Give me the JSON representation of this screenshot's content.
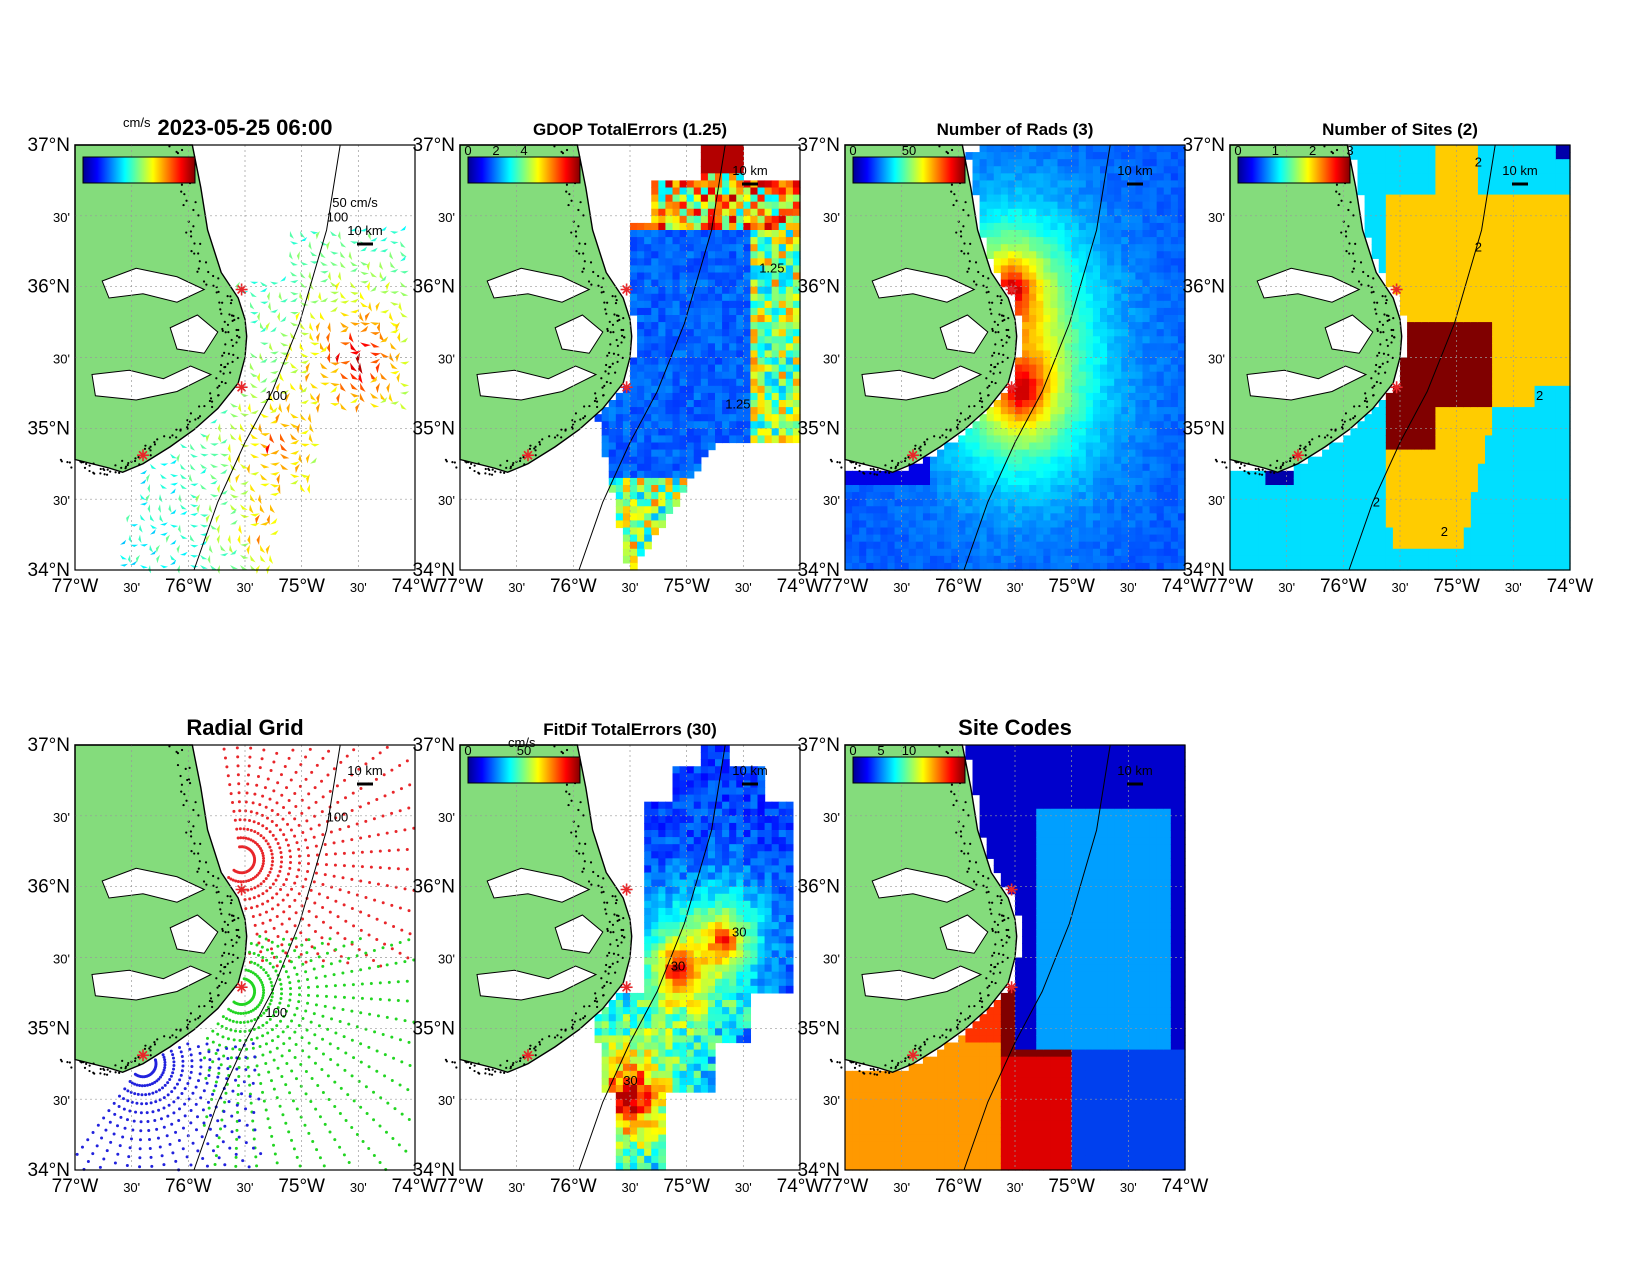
{
  "figure": {
    "panels": [
      {
        "id": "currents",
        "title": "2023-05-25 06:00",
        "title_size": 22,
        "colorbar": {
          "unit_label": "cm/s",
          "tick_labels": []
        },
        "scale_arrow_label": "50 cm/s",
        "scale_km_label": "10 km",
        "contour_labels": [
          "100",
          "100"
        ],
        "content": "vectors"
      },
      {
        "id": "gdop",
        "title": "GDOP TotalErrors (1.25)",
        "title_size": 17,
        "colorbar": {
          "unit_label": "",
          "tick_labels": [
            "0",
            "2",
            "4"
          ]
        },
        "scale_km_label": "10 km",
        "contour_labels": [
          "1.25",
          "1.25"
        ],
        "content": "gdop"
      },
      {
        "id": "nrads",
        "title": "Number of Rads (3)",
        "title_size": 17,
        "colorbar": {
          "unit_label": "",
          "tick_labels": [
            "0",
            "50"
          ]
        },
        "scale_km_label": "10 km",
        "contour_labels": [],
        "content": "nrads"
      },
      {
        "id": "nsites",
        "title": "Number of Sites (2)",
        "title_size": 17,
        "colorbar": {
          "unit_label": "",
          "tick_labels": [
            "0",
            "1",
            "2",
            "3"
          ]
        },
        "scale_km_label": "10 km",
        "contour_labels": [
          "2",
          "2",
          "2",
          "2",
          "2"
        ],
        "content": "nsites"
      },
      {
        "id": "radgrid",
        "title": "Radial Grid",
        "title_size": 22,
        "colorbar": null,
        "scale_km_label": "10 km",
        "contour_labels": [
          "100",
          "100"
        ],
        "content": "radgrid"
      },
      {
        "id": "fitdif",
        "title": "FitDif TotalErrors (30)",
        "title_size": 17,
        "colorbar": {
          "unit_label": "cm/s",
          "tick_labels": [
            "0",
            "50"
          ]
        },
        "scale_km_label": "10 km",
        "contour_labels": [
          "30",
          "30",
          "30"
        ],
        "content": "fitdif"
      },
      {
        "id": "sitecodes",
        "title": "Site Codes",
        "title_size": 22,
        "colorbar": {
          "unit_label": "",
          "tick_labels": [
            "0",
            "5",
            "10"
          ]
        },
        "scale_km_label": "10 km",
        "contour_labels": [],
        "content": "sitecodes"
      }
    ],
    "axes": {
      "lat_labels": [
        "37°N",
        "30'",
        "36°N",
        "30'",
        "35°N",
        "30'",
        "34°N"
      ],
      "lon_labels": [
        "77°W",
        "30'",
        "76°W",
        "30'",
        "75°W",
        "30'",
        "74°W"
      ],
      "lat_range": [
        34,
        37
      ],
      "lon_range": [
        -77,
        -74
      ]
    },
    "colors": {
      "land": "#84dc7c",
      "site_marker": "#e8262a",
      "grid_site_1": "#e8262a",
      "grid_site_2": "#22d522",
      "grid_site_3": "#2222dd"
    }
  }
}
